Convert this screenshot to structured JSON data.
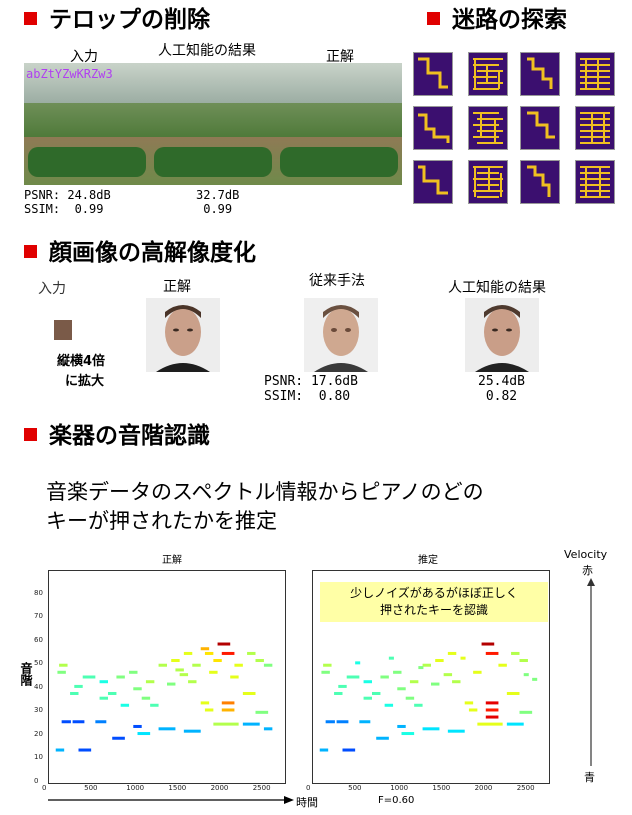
{
  "sections": {
    "telop": "テロップの削除",
    "maze": "迷路の探索",
    "face": "顔画像の高解像度化",
    "music": "楽器の音階認識"
  },
  "telop": {
    "input_label": "入力",
    "ai_label": "人工知能の結果",
    "truth_label": "正解",
    "overlay_text": "abZtYZwKRZw3",
    "psnr_label": "PSNR:",
    "ssim_label": "SSIM:",
    "input_psnr": "24.8dB",
    "input_ssim": "0.99",
    "ai_psnr": "32.7dB",
    "ai_ssim": "0.99"
  },
  "face": {
    "input_label": "入力",
    "truth_label": "正解",
    "conv_label": "従来手法",
    "ai_label": "人工知能の結果",
    "scale_note_1": "縦横4倍",
    "scale_note_2": "に拡大",
    "psnr_label": "PSNR:",
    "ssim_label": "SSIM:",
    "conv_psnr": "17.6dB",
    "conv_ssim": "0.80",
    "ai_psnr": "25.4dB",
    "ai_ssim": "0.82"
  },
  "music": {
    "headline_1": "音楽データのスペクトル情報からピアノのどの",
    "headline_2": "キーが押されたかを推定",
    "panel_truth_title": "正解",
    "panel_est_title": "推定",
    "ylabel": "音階",
    "xlabel": "時間",
    "fscore": "F=0.60",
    "velocity_label": "Velocity",
    "velocity_high": "赤",
    "velocity_low": "青",
    "note_line_1": "少しノイズがあるがほぼ正しく",
    "note_line_2": "押されたキーを認識",
    "colors": {
      "accent": "#e00000",
      "note_bg": "#ffffa6",
      "maze_bg": "#3b0f6f",
      "maze_path": "#f0c020"
    }
  },
  "chart_data": {
    "type": "scatter",
    "ylim": [
      0,
      90
    ],
    "xlim": [
      0,
      2800
    ],
    "yticks": [
      "0",
      "10",
      "20",
      "30",
      "40",
      "50",
      "60",
      "70",
      "80"
    ],
    "xticks": [
      "0",
      "500",
      "1000",
      "1500",
      "2000",
      "2500"
    ],
    "series": [
      {
        "name": "正解",
        "segments": [
          {
            "x0": 80,
            "x1": 180,
            "y": 14,
            "v": 0.3
          },
          {
            "x0": 350,
            "x1": 500,
            "y": 14,
            "v": 0.2
          },
          {
            "x0": 150,
            "x1": 260,
            "y": 26,
            "v": 0.2
          },
          {
            "x0": 280,
            "x1": 420,
            "y": 26,
            "v": 0.2
          },
          {
            "x0": 550,
            "x1": 680,
            "y": 26,
            "v": 0.25
          },
          {
            "x0": 750,
            "x1": 900,
            "y": 19,
            "v": 0.2
          },
          {
            "x0": 1050,
            "x1": 1200,
            "y": 21,
            "v": 0.35
          },
          {
            "x0": 1000,
            "x1": 1100,
            "y": 24,
            "v": 0.2
          },
          {
            "x0": 1300,
            "x1": 1500,
            "y": 23,
            "v": 0.3
          },
          {
            "x0": 1600,
            "x1": 1800,
            "y": 22,
            "v": 0.3
          },
          {
            "x0": 1950,
            "x1": 2250,
            "y": 25,
            "v": 0.55
          },
          {
            "x0": 2300,
            "x1": 2500,
            "y": 25,
            "v": 0.3
          },
          {
            "x0": 2550,
            "x1": 2650,
            "y": 23,
            "v": 0.3
          },
          {
            "x0": 100,
            "x1": 200,
            "y": 47,
            "v": 0.5
          },
          {
            "x0": 120,
            "x1": 220,
            "y": 50,
            "v": 0.55
          },
          {
            "x0": 400,
            "x1": 550,
            "y": 45,
            "v": 0.45
          },
          {
            "x0": 600,
            "x1": 700,
            "y": 43,
            "v": 0.4
          },
          {
            "x0": 300,
            "x1": 400,
            "y": 41,
            "v": 0.45
          },
          {
            "x0": 800,
            "x1": 900,
            "y": 45,
            "v": 0.5
          },
          {
            "x0": 250,
            "x1": 350,
            "y": 38,
            "v": 0.45
          },
          {
            "x0": 700,
            "x1": 800,
            "y": 38,
            "v": 0.45
          },
          {
            "x0": 950,
            "x1": 1050,
            "y": 47,
            "v": 0.5
          },
          {
            "x0": 1000,
            "x1": 1100,
            "y": 40,
            "v": 0.5
          },
          {
            "x0": 1150,
            "x1": 1250,
            "y": 43,
            "v": 0.55
          },
          {
            "x0": 1300,
            "x1": 1400,
            "y": 50,
            "v": 0.55
          },
          {
            "x0": 1450,
            "x1": 1550,
            "y": 52,
            "v": 0.6
          },
          {
            "x0": 1500,
            "x1": 1600,
            "y": 48,
            "v": 0.55
          },
          {
            "x0": 1600,
            "x1": 1700,
            "y": 55,
            "v": 0.6
          },
          {
            "x0": 1700,
            "x1": 1800,
            "y": 50,
            "v": 0.55
          },
          {
            "x0": 1850,
            "x1": 1950,
            "y": 55,
            "v": 0.65
          },
          {
            "x0": 1950,
            "x1": 2050,
            "y": 52,
            "v": 0.65
          },
          {
            "x0": 2000,
            "x1": 2150,
            "y": 59,
            "v": 0.95
          },
          {
            "x0": 2050,
            "x1": 2200,
            "y": 55,
            "v": 0.85
          },
          {
            "x0": 2050,
            "x1": 2200,
            "y": 34,
            "v": 0.75
          },
          {
            "x0": 2050,
            "x1": 2200,
            "y": 31,
            "v": 0.7
          },
          {
            "x0": 2200,
            "x1": 2300,
            "y": 50,
            "v": 0.6
          },
          {
            "x0": 2350,
            "x1": 2450,
            "y": 55,
            "v": 0.55
          },
          {
            "x0": 2450,
            "x1": 2550,
            "y": 52,
            "v": 0.55
          },
          {
            "x0": 2550,
            "x1": 2650,
            "y": 50,
            "v": 0.5
          },
          {
            "x0": 2300,
            "x1": 2450,
            "y": 38,
            "v": 0.6
          },
          {
            "x0": 2450,
            "x1": 2600,
            "y": 30,
            "v": 0.5
          },
          {
            "x0": 1800,
            "x1": 1900,
            "y": 34,
            "v": 0.6
          },
          {
            "x0": 1850,
            "x1": 1950,
            "y": 31,
            "v": 0.6
          },
          {
            "x0": 1550,
            "x1": 1650,
            "y": 46,
            "v": 0.55
          },
          {
            "x0": 1400,
            "x1": 1500,
            "y": 42,
            "v": 0.5
          },
          {
            "x0": 1100,
            "x1": 1200,
            "y": 36,
            "v": 0.5
          },
          {
            "x0": 1200,
            "x1": 1300,
            "y": 33,
            "v": 0.45
          },
          {
            "x0": 600,
            "x1": 700,
            "y": 36,
            "v": 0.45
          },
          {
            "x0": 850,
            "x1": 950,
            "y": 33,
            "v": 0.4
          },
          {
            "x0": 1650,
            "x1": 1750,
            "y": 43,
            "v": 0.55
          },
          {
            "x0": 1900,
            "x1": 2000,
            "y": 47,
            "v": 0.6
          },
          {
            "x0": 2150,
            "x1": 2250,
            "y": 45,
            "v": 0.6
          },
          {
            "x0": 1800,
            "x1": 1900,
            "y": 57,
            "v": 0.7
          }
        ]
      },
      {
        "name": "推定",
        "segments": [
          {
            "x0": 80,
            "x1": 180,
            "y": 14,
            "v": 0.3
          },
          {
            "x0": 350,
            "x1": 500,
            "y": 14,
            "v": 0.2
          },
          {
            "x0": 150,
            "x1": 260,
            "y": 26,
            "v": 0.25
          },
          {
            "x0": 280,
            "x1": 420,
            "y": 26,
            "v": 0.25
          },
          {
            "x0": 550,
            "x1": 680,
            "y": 26,
            "v": 0.3
          },
          {
            "x0": 750,
            "x1": 900,
            "y": 19,
            "v": 0.3
          },
          {
            "x0": 1050,
            "x1": 1200,
            "y": 21,
            "v": 0.4
          },
          {
            "x0": 1000,
            "x1": 1100,
            "y": 24,
            "v": 0.3
          },
          {
            "x0": 1300,
            "x1": 1500,
            "y": 23,
            "v": 0.35
          },
          {
            "x0": 1600,
            "x1": 1800,
            "y": 22,
            "v": 0.35
          },
          {
            "x0": 1950,
            "x1": 2250,
            "y": 25,
            "v": 0.6
          },
          {
            "x0": 2300,
            "x1": 2500,
            "y": 25,
            "v": 0.35
          },
          {
            "x0": 100,
            "x1": 200,
            "y": 47,
            "v": 0.5
          },
          {
            "x0": 120,
            "x1": 220,
            "y": 50,
            "v": 0.55
          },
          {
            "x0": 400,
            "x1": 550,
            "y": 45,
            "v": 0.45
          },
          {
            "x0": 600,
            "x1": 700,
            "y": 43,
            "v": 0.4
          },
          {
            "x0": 300,
            "x1": 400,
            "y": 41,
            "v": 0.45
          },
          {
            "x0": 800,
            "x1": 900,
            "y": 45,
            "v": 0.5
          },
          {
            "x0": 250,
            "x1": 350,
            "y": 38,
            "v": 0.45
          },
          {
            "x0": 700,
            "x1": 800,
            "y": 38,
            "v": 0.45
          },
          {
            "x0": 950,
            "x1": 1050,
            "y": 47,
            "v": 0.5
          },
          {
            "x0": 1000,
            "x1": 1100,
            "y": 40,
            "v": 0.5
          },
          {
            "x0": 1150,
            "x1": 1250,
            "y": 43,
            "v": 0.55
          },
          {
            "x0": 1300,
            "x1": 1400,
            "y": 50,
            "v": 0.55
          },
          {
            "x0": 1450,
            "x1": 1550,
            "y": 52,
            "v": 0.6
          },
          {
            "x0": 1600,
            "x1": 1700,
            "y": 55,
            "v": 0.6
          },
          {
            "x0": 2000,
            "x1": 2150,
            "y": 59,
            "v": 0.95
          },
          {
            "x0": 2050,
            "x1": 2200,
            "y": 55,
            "v": 0.85
          },
          {
            "x0": 2050,
            "x1": 2200,
            "y": 34,
            "v": 0.9
          },
          {
            "x0": 2050,
            "x1": 2200,
            "y": 31,
            "v": 0.85
          },
          {
            "x0": 2050,
            "x1": 2200,
            "y": 28,
            "v": 0.9
          },
          {
            "x0": 2200,
            "x1": 2300,
            "y": 50,
            "v": 0.6
          },
          {
            "x0": 2350,
            "x1": 2450,
            "y": 55,
            "v": 0.55
          },
          {
            "x0": 2450,
            "x1": 2550,
            "y": 52,
            "v": 0.55
          },
          {
            "x0": 2300,
            "x1": 2450,
            "y": 38,
            "v": 0.6
          },
          {
            "x0": 2450,
            "x1": 2600,
            "y": 30,
            "v": 0.5
          },
          {
            "x0": 1800,
            "x1": 1900,
            "y": 34,
            "v": 0.6
          },
          {
            "x0": 1850,
            "x1": 1950,
            "y": 31,
            "v": 0.6
          },
          {
            "x0": 1550,
            "x1": 1650,
            "y": 46,
            "v": 0.55
          },
          {
            "x0": 1400,
            "x1": 1500,
            "y": 42,
            "v": 0.5
          },
          {
            "x0": 1100,
            "x1": 1200,
            "y": 36,
            "v": 0.5
          },
          {
            "x0": 1200,
            "x1": 1300,
            "y": 33,
            "v": 0.45
          },
          {
            "x0": 600,
            "x1": 700,
            "y": 36,
            "v": 0.45
          },
          {
            "x0": 850,
            "x1": 950,
            "y": 33,
            "v": 0.4
          },
          {
            "x0": 1650,
            "x1": 1750,
            "y": 43,
            "v": 0.55
          },
          {
            "x0": 1900,
            "x1": 2000,
            "y": 47,
            "v": 0.6
          },
          {
            "x0": 500,
            "x1": 560,
            "y": 51,
            "v": 0.4
          },
          {
            "x0": 900,
            "x1": 960,
            "y": 53,
            "v": 0.45
          },
          {
            "x0": 1250,
            "x1": 1310,
            "y": 49,
            "v": 0.5
          },
          {
            "x0": 1750,
            "x1": 1810,
            "y": 53,
            "v": 0.6
          },
          {
            "x0": 2500,
            "x1": 2560,
            "y": 46,
            "v": 0.5
          },
          {
            "x0": 2600,
            "x1": 2660,
            "y": 44,
            "v": 0.5
          }
        ]
      }
    ]
  }
}
